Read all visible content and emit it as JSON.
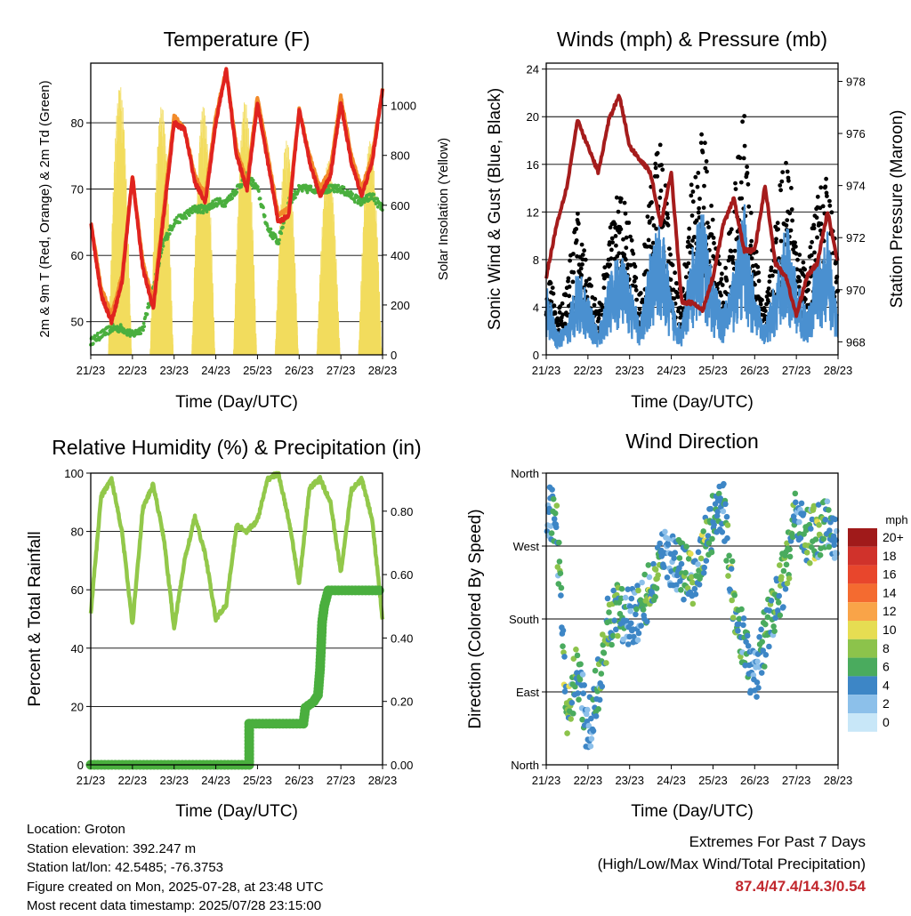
{
  "x_ticks": [
    "21/23",
    "22/23",
    "23/23",
    "24/23",
    "25/23",
    "26/23",
    "27/23",
    "28/23"
  ],
  "colors": {
    "temp2m": "#e0231f",
    "temp9m": "#f28b2a",
    "dewpoint": "#4aaf3e",
    "solar": "#f2dc5d",
    "gust": "#000000",
    "wind": "#4a90d0",
    "pressure": "#a51c1c",
    "rh": "#92c84a",
    "precip": "#4aaf3e",
    "gridline": "#000000"
  },
  "chart_data": [
    {
      "type": "line",
      "title": "Temperature (F)",
      "xlabel": "Time (Day/UTC)",
      "ylabel": "2m & 9m T (Red, Orange) & 2m Td (Green)",
      "y2label": "Solar Insolation (Yellow)",
      "ylim": [
        45,
        89
      ],
      "y_ticks": [
        50,
        60,
        70,
        80
      ],
      "y2lim": [
        0,
        1170
      ],
      "y2_ticks": [
        0,
        200,
        400,
        600,
        800,
        1000
      ],
      "x": [
        0,
        0.25,
        0.5,
        0.75,
        1,
        1.25,
        1.5,
        1.75,
        2,
        2.25,
        2.5,
        2.75,
        3,
        3.25,
        3.5,
        3.75,
        4,
        4.25,
        4.5,
        4.75,
        5,
        5.25,
        5.5,
        5.75,
        6,
        6.25,
        6.5,
        6.75,
        7
      ],
      "series": [
        {
          "name": "2m T",
          "values": [
            65,
            54,
            50,
            56,
            72,
            58,
            52,
            66,
            80,
            79,
            71,
            68,
            80,
            88,
            75,
            70,
            83,
            74,
            65,
            66,
            82,
            74,
            69,
            72,
            83,
            74,
            69,
            74,
            85
          ]
        },
        {
          "name": "9m T",
          "values": [
            65,
            55,
            51,
            57,
            72,
            59,
            53,
            67,
            81,
            79,
            72,
            69,
            81,
            88,
            76,
            71,
            84,
            75,
            66,
            67,
            82,
            75,
            70,
            73,
            84,
            75,
            70,
            75,
            85
          ]
        },
        {
          "name": "2m Td",
          "values": [
            47,
            48,
            49,
            49,
            48,
            49,
            55,
            62,
            65,
            66,
            67,
            67,
            68,
            68,
            70,
            72,
            70,
            64,
            62,
            68,
            70,
            70,
            70,
            70,
            70,
            69,
            68,
            69,
            67
          ]
        },
        {
          "name": "Solar Insolation",
          "axis": "y2",
          "daily_peak": [
            1080,
            1000,
            1000,
            1020,
            860,
            780,
            860,
            700
          ]
        }
      ]
    },
    {
      "type": "scatter",
      "title": "Winds (mph) & Pressure (mb)",
      "xlabel": "Time (Day/UTC)",
      "ylabel": "Sonic Wind & Gust (Blue, Black)",
      "y2label": "Station Pressure (Maroon)",
      "ylim": [
        0,
        24.5
      ],
      "y_ticks": [
        0,
        4,
        8,
        12,
        16,
        20,
        24
      ],
      "y2lim": [
        967.5,
        978.7
      ],
      "y2_ticks": [
        968,
        970,
        972,
        974,
        976,
        978
      ],
      "x": [
        0,
        0.25,
        0.5,
        0.75,
        1,
        1.25,
        1.5,
        1.75,
        2,
        2.25,
        2.5,
        2.75,
        3,
        3.25,
        3.5,
        3.75,
        4,
        4.25,
        4.5,
        4.75,
        5,
        5.25,
        5.5,
        5.75,
        6,
        6.25,
        6.5,
        6.75,
        7
      ],
      "series": [
        {
          "name": "Gust",
          "values": [
            7,
            3,
            5,
            10,
            6,
            3,
            8,
            12,
            9,
            4,
            12,
            15,
            7,
            4,
            12,
            16,
            9,
            5,
            11,
            17,
            8,
            3,
            9,
            15,
            8,
            6,
            11,
            12,
            6
          ]
        },
        {
          "name": "Wind",
          "values": [
            5,
            1.5,
            2,
            6,
            4,
            1.5,
            5,
            7,
            5,
            2,
            7,
            9,
            4,
            2,
            7,
            10,
            5,
            3,
            6,
            10,
            4,
            2,
            5,
            9,
            5,
            3,
            7,
            8,
            3
          ]
        },
        {
          "name": "Station Pressure",
          "axis": "y2",
          "values": [
            970.5,
            972.5,
            974,
            976.5,
            975.5,
            974.5,
            976.5,
            977.5,
            975.5,
            975,
            974.5,
            972.5,
            974.5,
            969.5,
            969.5,
            969.2,
            970.5,
            972.5,
            973.5,
            971.5,
            971.5,
            974,
            971,
            970.5,
            969,
            970.5,
            971,
            973,
            971
          ]
        }
      ]
    },
    {
      "type": "line",
      "title": "Relative Humidity (%) & Precipitation (in)",
      "xlabel": "Time (Day/UTC)",
      "ylabel": "Percent & Total Rainfall",
      "ylim": [
        0,
        100
      ],
      "y_ticks": [
        0,
        20,
        40,
        60,
        80,
        100
      ],
      "y2lim": [
        0,
        0.92
      ],
      "y2_ticks": [
        "0.00",
        "0.20",
        "0.40",
        "0.60",
        "0.80"
      ],
      "x": [
        0,
        0.25,
        0.5,
        0.75,
        1,
        1.25,
        1.5,
        1.75,
        2,
        2.25,
        2.5,
        2.75,
        3,
        3.25,
        3.5,
        3.75,
        4,
        4.25,
        4.5,
        4.75,
        5,
        5.25,
        5.5,
        5.75,
        6,
        6.25,
        6.5,
        6.75,
        7
      ],
      "series": [
        {
          "name": "RH",
          "values": [
            52,
            92,
            98,
            80,
            48,
            88,
            96,
            78,
            47,
            70,
            85,
            72,
            50,
            55,
            82,
            80,
            84,
            98,
            100,
            84,
            62,
            95,
            98,
            90,
            66,
            94,
            98,
            84,
            50
          ]
        },
        {
          "name": "Total Rainfall",
          "axis": "y2",
          "steps": [
            [
              0,
              0
            ],
            [
              3.8,
              0
            ],
            [
              3.8,
              0.13
            ],
            [
              5.1,
              0.13
            ],
            [
              5.15,
              0.18
            ],
            [
              5.35,
              0.2
            ],
            [
              5.45,
              0.22
            ],
            [
              5.5,
              0.3
            ],
            [
              5.55,
              0.45
            ],
            [
              5.6,
              0.5
            ],
            [
              5.7,
              0.55
            ],
            [
              7,
              0.55
            ]
          ]
        }
      ]
    },
    {
      "type": "scatter",
      "title": "Wind Direction",
      "xlabel": "Time (Day/UTC)",
      "ylabel": "Direction (Colored By Speed)",
      "ylim": [
        0,
        360
      ],
      "y_ticks": [
        0,
        90,
        180,
        270,
        360
      ],
      "y_tick_labels": [
        "North",
        "East",
        "South",
        "West",
        "North"
      ],
      "x": [
        0,
        0.25,
        0.5,
        0.75,
        1,
        1.25,
        1.5,
        1.75,
        2,
        2.25,
        2.5,
        2.75,
        3,
        3.25,
        3.5,
        3.75,
        4,
        4.25,
        4.5,
        4.75,
        5,
        5.25,
        5.5,
        5.75,
        6,
        6.25,
        6.5,
        6.75,
        7
      ],
      "series": [
        {
          "name": "Direction",
          "values": [
            320,
            300,
            60,
            120,
            40,
            100,
            180,
            190,
            180,
            190,
            220,
            260,
            250,
            240,
            230,
            260,
            300,
            320,
            200,
            150,
            100,
            160,
            200,
            240,
            320,
            280,
            290,
            300,
            280
          ]
        }
      ],
      "legend": {
        "title": "mph",
        "labels": [
          "20+",
          "18",
          "16",
          "14",
          "12",
          "10",
          "8",
          "6",
          "4",
          "2",
          "0"
        ],
        "colors": [
          "#a01a1a",
          "#d0322b",
          "#e8462c",
          "#f46b30",
          "#f9a448",
          "#e6dd52",
          "#8cc34b",
          "#4aab5e",
          "#3d86c6",
          "#8cc0ea",
          "#c8e7f8"
        ],
        "placement": "right"
      }
    }
  ],
  "info": {
    "location": "Location: Groton",
    "elevation": "Station elevation: 392.247 m",
    "latlon": "Station lat/lon: 42.5485; -76.3753",
    "created": "Figure created on Mon, 2025-07-28, at 23:48 UTC",
    "recent": "Most recent data timestamp: 2025/07/28 23:15:00"
  },
  "extremes": {
    "line1": "Extremes For Past 7 Days",
    "line2": "(High/Low/Max Wind/Total Precipitation)",
    "values": "87.4/47.4/14.3/0.54"
  }
}
